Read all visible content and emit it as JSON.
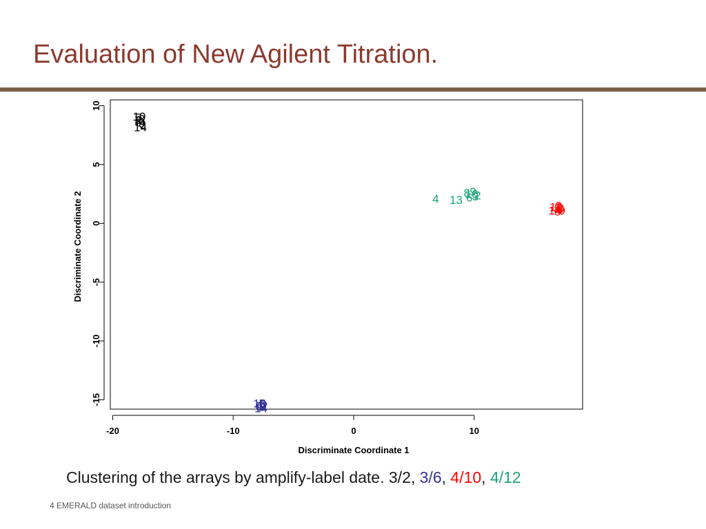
{
  "slide": {
    "title": "Evaluation of New Agilent Titration.",
    "footer": "4 EMERALD dataset introduction"
  },
  "caption": {
    "prefix": "Clustering of the arrays by amplify-label date. 3/2,",
    "parts": [
      {
        "text": "3/6",
        "color": "#2e3192"
      },
      {
        "text": "4/10",
        "color": "#ff0000"
      },
      {
        "text": "4/12",
        "color": "#1aa37a"
      }
    ],
    "separator": ", "
  },
  "chart_data": {
    "type": "scatter",
    "xlabel": "Discriminate Coordinate 1",
    "ylabel": "Discriminate Coordinate 2",
    "xlim": [
      -20.2,
      19.0
    ],
    "ylim": [
      -15.8,
      10.5
    ],
    "xticks": [
      "-20",
      "-10",
      "0",
      "10"
    ],
    "yticks": [
      "-15",
      "-10",
      "-5",
      "0",
      "5",
      "10"
    ],
    "grid": false,
    "series": [
      {
        "name": "3/2",
        "color": "#000000",
        "points": [
          {
            "x": -17.8,
            "y": 9.1,
            "label": "10"
          },
          {
            "x": -17.6,
            "y": 8.9,
            "label": "8"
          },
          {
            "x": -17.9,
            "y": 8.6,
            "label": "6"
          },
          {
            "x": -17.5,
            "y": 8.4,
            "label": "3"
          },
          {
            "x": -17.7,
            "y": 8.2,
            "label": "14"
          },
          {
            "x": -17.8,
            "y": 8.8,
            "label": "2"
          },
          {
            "x": -17.6,
            "y": 8.5,
            "label": "9"
          },
          {
            "x": -17.9,
            "y": 9.0,
            "label": "5"
          }
        ]
      },
      {
        "name": "3/6",
        "color": "#2e3192",
        "points": [
          {
            "x": -7.8,
            "y": -15.3,
            "label": "10"
          },
          {
            "x": -7.6,
            "y": -15.6,
            "label": "8"
          },
          {
            "x": -7.9,
            "y": -15.5,
            "label": "6"
          },
          {
            "x": -7.5,
            "y": -15.4,
            "label": "3"
          },
          {
            "x": -7.7,
            "y": -15.7,
            "label": "14"
          },
          {
            "x": -7.4,
            "y": -15.5,
            "label": "2"
          },
          {
            "x": -7.8,
            "y": -15.6,
            "label": "9"
          },
          {
            "x": -7.6,
            "y": -15.3,
            "label": "5"
          }
        ]
      },
      {
        "name": "4/10",
        "color": "#ff0000",
        "points": [
          {
            "x": 16.8,
            "y": 1.4,
            "label": "10"
          },
          {
            "x": 17.1,
            "y": 1.2,
            "label": "8"
          },
          {
            "x": 16.9,
            "y": 1.0,
            "label": "6"
          },
          {
            "x": 17.2,
            "y": 1.3,
            "label": "3"
          },
          {
            "x": 16.7,
            "y": 1.1,
            "label": "14"
          },
          {
            "x": 17.0,
            "y": 1.5,
            "label": "2"
          },
          {
            "x": 17.3,
            "y": 1.1,
            "label": "9"
          },
          {
            "x": 16.9,
            "y": 1.3,
            "label": "5"
          }
        ]
      },
      {
        "name": "4/12",
        "color": "#1aa37a",
        "points": [
          {
            "x": 6.8,
            "y": 2.1,
            "label": "4"
          },
          {
            "x": 8.5,
            "y": 2.0,
            "label": "13"
          },
          {
            "x": 9.4,
            "y": 2.6,
            "label": "8"
          },
          {
            "x": 9.8,
            "y": 2.5,
            "label": "10"
          },
          {
            "x": 10.1,
            "y": 2.3,
            "label": "3"
          },
          {
            "x": 9.6,
            "y": 2.2,
            "label": "6"
          },
          {
            "x": 10.3,
            "y": 2.4,
            "label": "2"
          },
          {
            "x": 9.9,
            "y": 2.7,
            "label": "9"
          }
        ]
      }
    ]
  }
}
